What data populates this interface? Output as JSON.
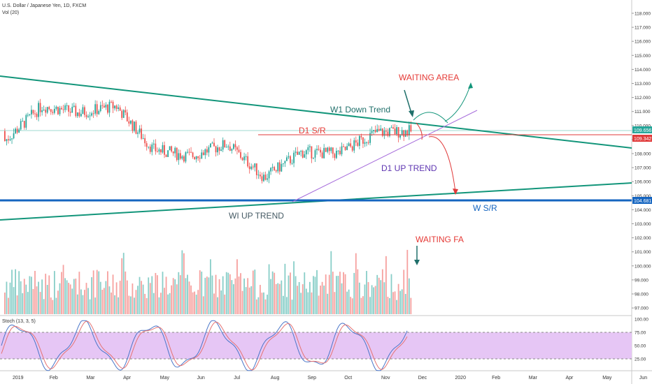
{
  "header": {
    "symbol_line": "U.S. Dollar / Japanese Yen, 1D, FXCM",
    "volume_label": "Vol (20)"
  },
  "stoch": {
    "label": "Stoch (13, 3, 5)",
    "ticks": [
      "100.00",
      "75.00",
      "50.00",
      "25.00"
    ],
    "upper": 75,
    "lower": 25
  },
  "price_axis": {
    "min": 97,
    "max": 118,
    "ticks": [
      "118.000",
      "117.000",
      "116.000",
      "115.000",
      "114.000",
      "113.000",
      "112.000",
      "111.000",
      "110.000",
      "109.000",
      "108.000",
      "107.000",
      "106.000",
      "105.000",
      "104.000",
      "103.000",
      "102.000",
      "101.000",
      "100.000",
      "99.000",
      "98.000",
      "97.000"
    ]
  },
  "time_axis": {
    "labels": [
      "2019",
      "Feb",
      "Mar",
      "Apr",
      "May",
      "Jun",
      "Jul",
      "Aug",
      "Sep",
      "Oct",
      "Nov",
      "Dec",
      "2020",
      "Feb",
      "Mar",
      "Apr",
      "May",
      "Jun"
    ]
  },
  "badges": {
    "last_price": "109.656",
    "d1_level": "109.342",
    "w_level": "104.681"
  },
  "annotations": {
    "waiting_area": "WAITING AREA",
    "w1_down_trend": "W1 Down Trend",
    "d1_sr": "D1 S/R",
    "d1_up_trend": "D1 UP TREND",
    "wi_up_trend": "WI UP TREND",
    "w_sr": "W S/R",
    "waiting_fa": "WAITING FA"
  },
  "colors": {
    "up": "#26a69a",
    "down": "#ef5350",
    "trend_line": "#12957a",
    "d1_line": "#e03a3a",
    "w_sr_line": "#1565c0",
    "d1_up_line": "#a66cdb",
    "annotation_red": "#e53935",
    "annotation_teal": "#1f6f6a",
    "stoch_band": "#e6c6f5"
  },
  "chart_data": {
    "type": "candlestick",
    "symbol": "USD/JPY",
    "timeframe": "1D",
    "months": [
      "2019-01",
      "2019-02",
      "2019-03",
      "2019-04",
      "2019-05",
      "2019-06",
      "2019-07",
      "2019-08",
      "2019-09",
      "2019-10",
      "2019-11",
      "2019-12"
    ],
    "monthly_close": [
      108.9,
      111.4,
      110.9,
      111.4,
      108.3,
      107.8,
      108.7,
      106.3,
      108.1,
      108.0,
      109.5,
      109.6
    ],
    "levels": {
      "last_price": 109.656,
      "d1_sr": 109.342,
      "w_sr": 104.681
    },
    "ylim": [
      97,
      118
    ]
  }
}
